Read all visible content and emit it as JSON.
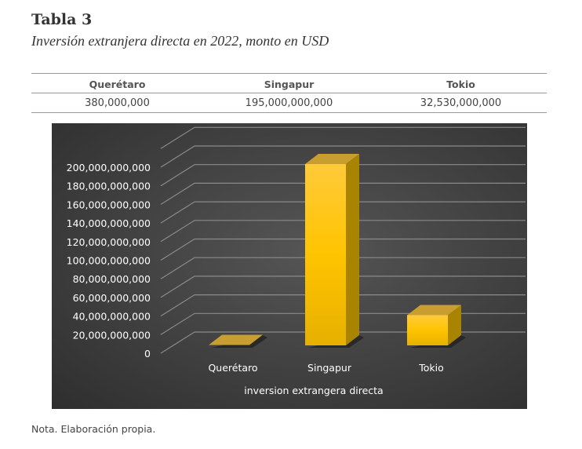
{
  "header": {
    "title": "Tabla 3",
    "subtitle": "Inversión extranjera directa en 2022, monto en USD"
  },
  "table": {
    "columns": [
      "Querétaro",
      "Singapur",
      "Tokio"
    ],
    "values": [
      "380,000,000",
      "195,000,000,000",
      "32,530,000,000"
    ]
  },
  "chart_data": {
    "type": "bar",
    "style": "3d-column",
    "categories": [
      "Querétaro",
      "Singapur",
      "Tokio"
    ],
    "values": [
      380000000,
      195000000000,
      32530000000
    ],
    "xlabel": "inversion extrangera directa",
    "ylabel": "",
    "ylim": [
      0,
      200000000000
    ],
    "yticks": [
      "0",
      "20,000,000,000",
      "40,000,000,000",
      "60,000,000,000",
      "80,000,000,000",
      "100,000,000,000",
      "120,000,000,000",
      "140,000,000,000",
      "160,000,000,000",
      "180,000,000,000",
      "200,000,000,000"
    ],
    "grid": true,
    "colors": {
      "background": "#404040",
      "bar": "#FFC000",
      "grid": "#8a8a8a",
      "text": "#ffffff"
    }
  },
  "note": "Nota. Elaboración propia."
}
